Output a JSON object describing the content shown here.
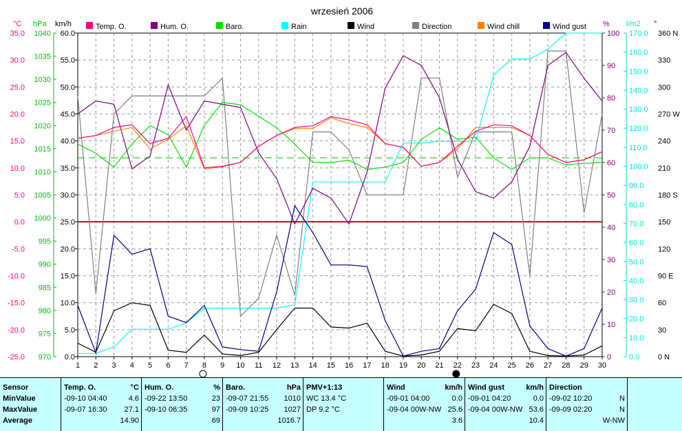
{
  "chart_data": {
    "type": "line",
    "title": "wrzesień 2006",
    "x": [
      1,
      2,
      3,
      4,
      5,
      6,
      7,
      8,
      9,
      10,
      11,
      12,
      13,
      14,
      15,
      16,
      17,
      18,
      19,
      20,
      21,
      22,
      23,
      24,
      25,
      26,
      27,
      28,
      29,
      30
    ],
    "xlim": [
      1,
      30
    ],
    "axes": {
      "temp": {
        "unit": "°C",
        "ylim": [
          -25,
          35
        ],
        "ticks": [
          35.0,
          30.0,
          25.0,
          20.0,
          15.0,
          10.0,
          5.0,
          0.0,
          -5.0,
          -10.0,
          -15.0,
          -20.0,
          -25.0
        ],
        "color": "#ff0080"
      },
      "baro": {
        "unit": "hPa",
        "ylim": [
          970,
          1040
        ],
        "ticks": [
          1040,
          1035,
          1030,
          1025,
          1020,
          1015,
          1010,
          1005,
          1000,
          995,
          990,
          985,
          980,
          975,
          970
        ],
        "color": "#00c000"
      },
      "wind": {
        "unit": "km/h",
        "ylim": [
          0,
          60
        ],
        "ticks": [
          60.0,
          55.0,
          50.0,
          45.0,
          40.0,
          35.0,
          30.0,
          25.0,
          20.0,
          15.0,
          10.0,
          5.0,
          0.0
        ],
        "color": "#000000"
      },
      "hum": {
        "unit": "%",
        "ylim": [
          0,
          100
        ],
        "ticks": [
          100,
          90,
          80,
          70,
          60,
          50,
          40,
          30,
          20,
          10,
          0
        ],
        "color": "#800080"
      },
      "rain": {
        "unit": "l/m2",
        "ylim": [
          0,
          170
        ],
        "ticks": [
          170.0,
          160.0,
          150.0,
          140.0,
          130.0,
          120.0,
          110.0,
          100.0,
          90.0,
          80.0,
          70.0,
          60.0,
          50.0,
          40.0,
          30.0,
          20.0,
          10.0,
          0.0
        ],
        "color": "#00e0e0"
      },
      "dir": {
        "unit": "°",
        "ylim": [
          0,
          360
        ],
        "ticks": [
          "360 N",
          "330",
          "300",
          "270 W",
          "240",
          "210",
          "180 S",
          "150",
          "120",
          "90 E",
          "60",
          "30",
          "0 N"
        ],
        "color": "#000000"
      }
    },
    "legend": [
      "Temp. O.",
      "Hum. O.",
      "Baro.",
      "Rain",
      "Wind",
      "Direction",
      "Wind chill",
      "Wind gust"
    ],
    "series": [
      {
        "name": "Temp. O.",
        "axis": "temp",
        "color": "#ff0080",
        "values": [
          15.5,
          16.0,
          17.5,
          18.0,
          14.5,
          15.5,
          19.5,
          10.0,
          10.3,
          11.0,
          14.0,
          16.0,
          17.5,
          17.8,
          19.5,
          18.9,
          18.0,
          14.5,
          13.8,
          10.3,
          11.0,
          14.0,
          16.8,
          18.0,
          17.8,
          16.0,
          12.5,
          11.0,
          11.5,
          13.0
        ]
      },
      {
        "name": "Hum. O.",
        "axis": "hum",
        "color": "#800080",
        "values": [
          75,
          79,
          78,
          58,
          62,
          84,
          70,
          79,
          78,
          77,
          63,
          55,
          41,
          52,
          49,
          41,
          57,
          83,
          93,
          90,
          80,
          61,
          51,
          49,
          54,
          65,
          90,
          94,
          86,
          79
        ]
      },
      {
        "name": "Baro.",
        "axis": "baro",
        "color": "#00e000",
        "values": [
          1016,
          1014,
          1011,
          1016,
          1020,
          1018,
          1011,
          1020,
          1025,
          1024.5,
          1022,
          1019.5,
          1016,
          1012,
          1012,
          1012.5,
          1010.5,
          1011,
          1012,
          1017,
          1019.5,
          1017,
          1017.5,
          1013,
          1010.5,
          1013,
          1013,
          1011.5,
          1011.8,
          1012
        ]
      },
      {
        "name": "Rain",
        "axis": "rain",
        "color": "#00ffff",
        "values": [
          1.7,
          1.7,
          5.1,
          14.4,
          14.4,
          14.4,
          17.8,
          25.5,
          25.5,
          25.5,
          25.5,
          25.5,
          27.2,
          91.8,
          91.8,
          91.8,
          91.8,
          91.8,
          112.2,
          112.2,
          113.1,
          113.1,
          113.1,
          147.9,
          156.4,
          156.4,
          161.5,
          170,
          170,
          170
        ]
      },
      {
        "name": "Wind",
        "axis": "wind",
        "color": "#000000",
        "values": [
          2.5,
          0.8,
          8.5,
          10.0,
          9.5,
          1.2,
          0.8,
          4.0,
          0.5,
          0.2,
          0.8,
          5.0,
          9.0,
          9.0,
          5.5,
          5.3,
          6.2,
          1.0,
          0.1,
          0.3,
          1.0,
          5.2,
          4.8,
          9.7,
          8.0,
          1.0,
          0.2,
          0.1,
          0.3,
          2.0
        ]
      },
      {
        "name": "Direction",
        "axis": "dir",
        "color": "#808080",
        "values": [
          290,
          70,
          270,
          290,
          290,
          290,
          290,
          290,
          310,
          45,
          65,
          135,
          68,
          250,
          250,
          230,
          180,
          180,
          180,
          310,
          310,
          200,
          250,
          250,
          250,
          90,
          340,
          340,
          160,
          270
        ]
      },
      {
        "name": "Wind chill",
        "axis": "temp",
        "color": "#ff8000",
        "values": [
          15.5,
          16.0,
          16.8,
          17.5,
          13.5,
          15.3,
          17.8,
          9.8,
          10.2,
          11.0,
          14.0,
          16.0,
          17.3,
          17.3,
          19.3,
          18.2,
          17.5,
          14.5,
          13.8,
          10.3,
          11.0,
          13.5,
          17.5,
          17.5,
          17.5,
          16.0,
          12.5,
          11.0,
          11.5,
          13.0
        ]
      },
      {
        "name": "Wind gust",
        "axis": "wind",
        "color": "#000080",
        "values": [
          9.5,
          0.7,
          22.5,
          19.0,
          20.0,
          7.5,
          6.3,
          9.5,
          1.8,
          1.3,
          1.0,
          12.0,
          28.0,
          23.0,
          17.0,
          17.0,
          16.7,
          6.7,
          0.1,
          1.0,
          1.5,
          8.5,
          12.5,
          23.0,
          20.8,
          5.7,
          1.5,
          0.1,
          1.5,
          9.0
        ]
      }
    ],
    "reference_lines": [
      {
        "axis": "temp",
        "value": 0.0,
        "color": "#e00000"
      },
      {
        "axis": "baro",
        "value": 1013,
        "color": "#00c000",
        "style": "dashed"
      }
    ],
    "moon_markers": [
      {
        "day": 8,
        "phase": "full"
      },
      {
        "day": 22,
        "phase": "new"
      }
    ],
    "grid": true
  },
  "stats": {
    "labels": {
      "sensor": "Sensor",
      "min": "MinValue",
      "max": "MaxValue",
      "avg": "Average"
    },
    "temp": {
      "title": "Temp. O.",
      "unit": "°C",
      "min_time": "-09-10  04:40",
      "min": "4.6",
      "max_time": "-09-07  16:30",
      "max": "27.1",
      "avg": "14.90"
    },
    "hum": {
      "title": "Hum. O.",
      "unit": "%",
      "min_time": "-09-22  13:50",
      "min": "23",
      "max_time": "-09-10  06:35",
      "max": "97",
      "avg": "69"
    },
    "baro": {
      "title": "Baro.",
      "unit": "hPa",
      "min_time": "-09-07  21:55",
      "min": "1010",
      "max_time": "-09-09  10:25",
      "max": "1027",
      "avg": "1016.7"
    },
    "pmv": {
      "title": "PMV+1:13",
      "wc": "WC 13.4 °C",
      "dp": "DP 9.2 °C"
    },
    "wind": {
      "title": "Wind",
      "unit": "km/h",
      "min_time": "-09-01  04:00",
      "min": "0.0",
      "max_time": "-09-04  00W-NW",
      "max": "25.6",
      "avg": "3.6"
    },
    "gust": {
      "title": "Wind gust",
      "unit": "km/h",
      "min_time": "-09-01  04:20",
      "min": "0.0",
      "max_time": "-09-04  00W-NW",
      "max": "53.6",
      "avg": "10.4"
    },
    "dir": {
      "title": "Direction",
      "min_time": "-09-02  10:20",
      "min": "N",
      "max_time": "-09-09  02:20",
      "max": "N",
      "avg": "W-NW"
    }
  }
}
